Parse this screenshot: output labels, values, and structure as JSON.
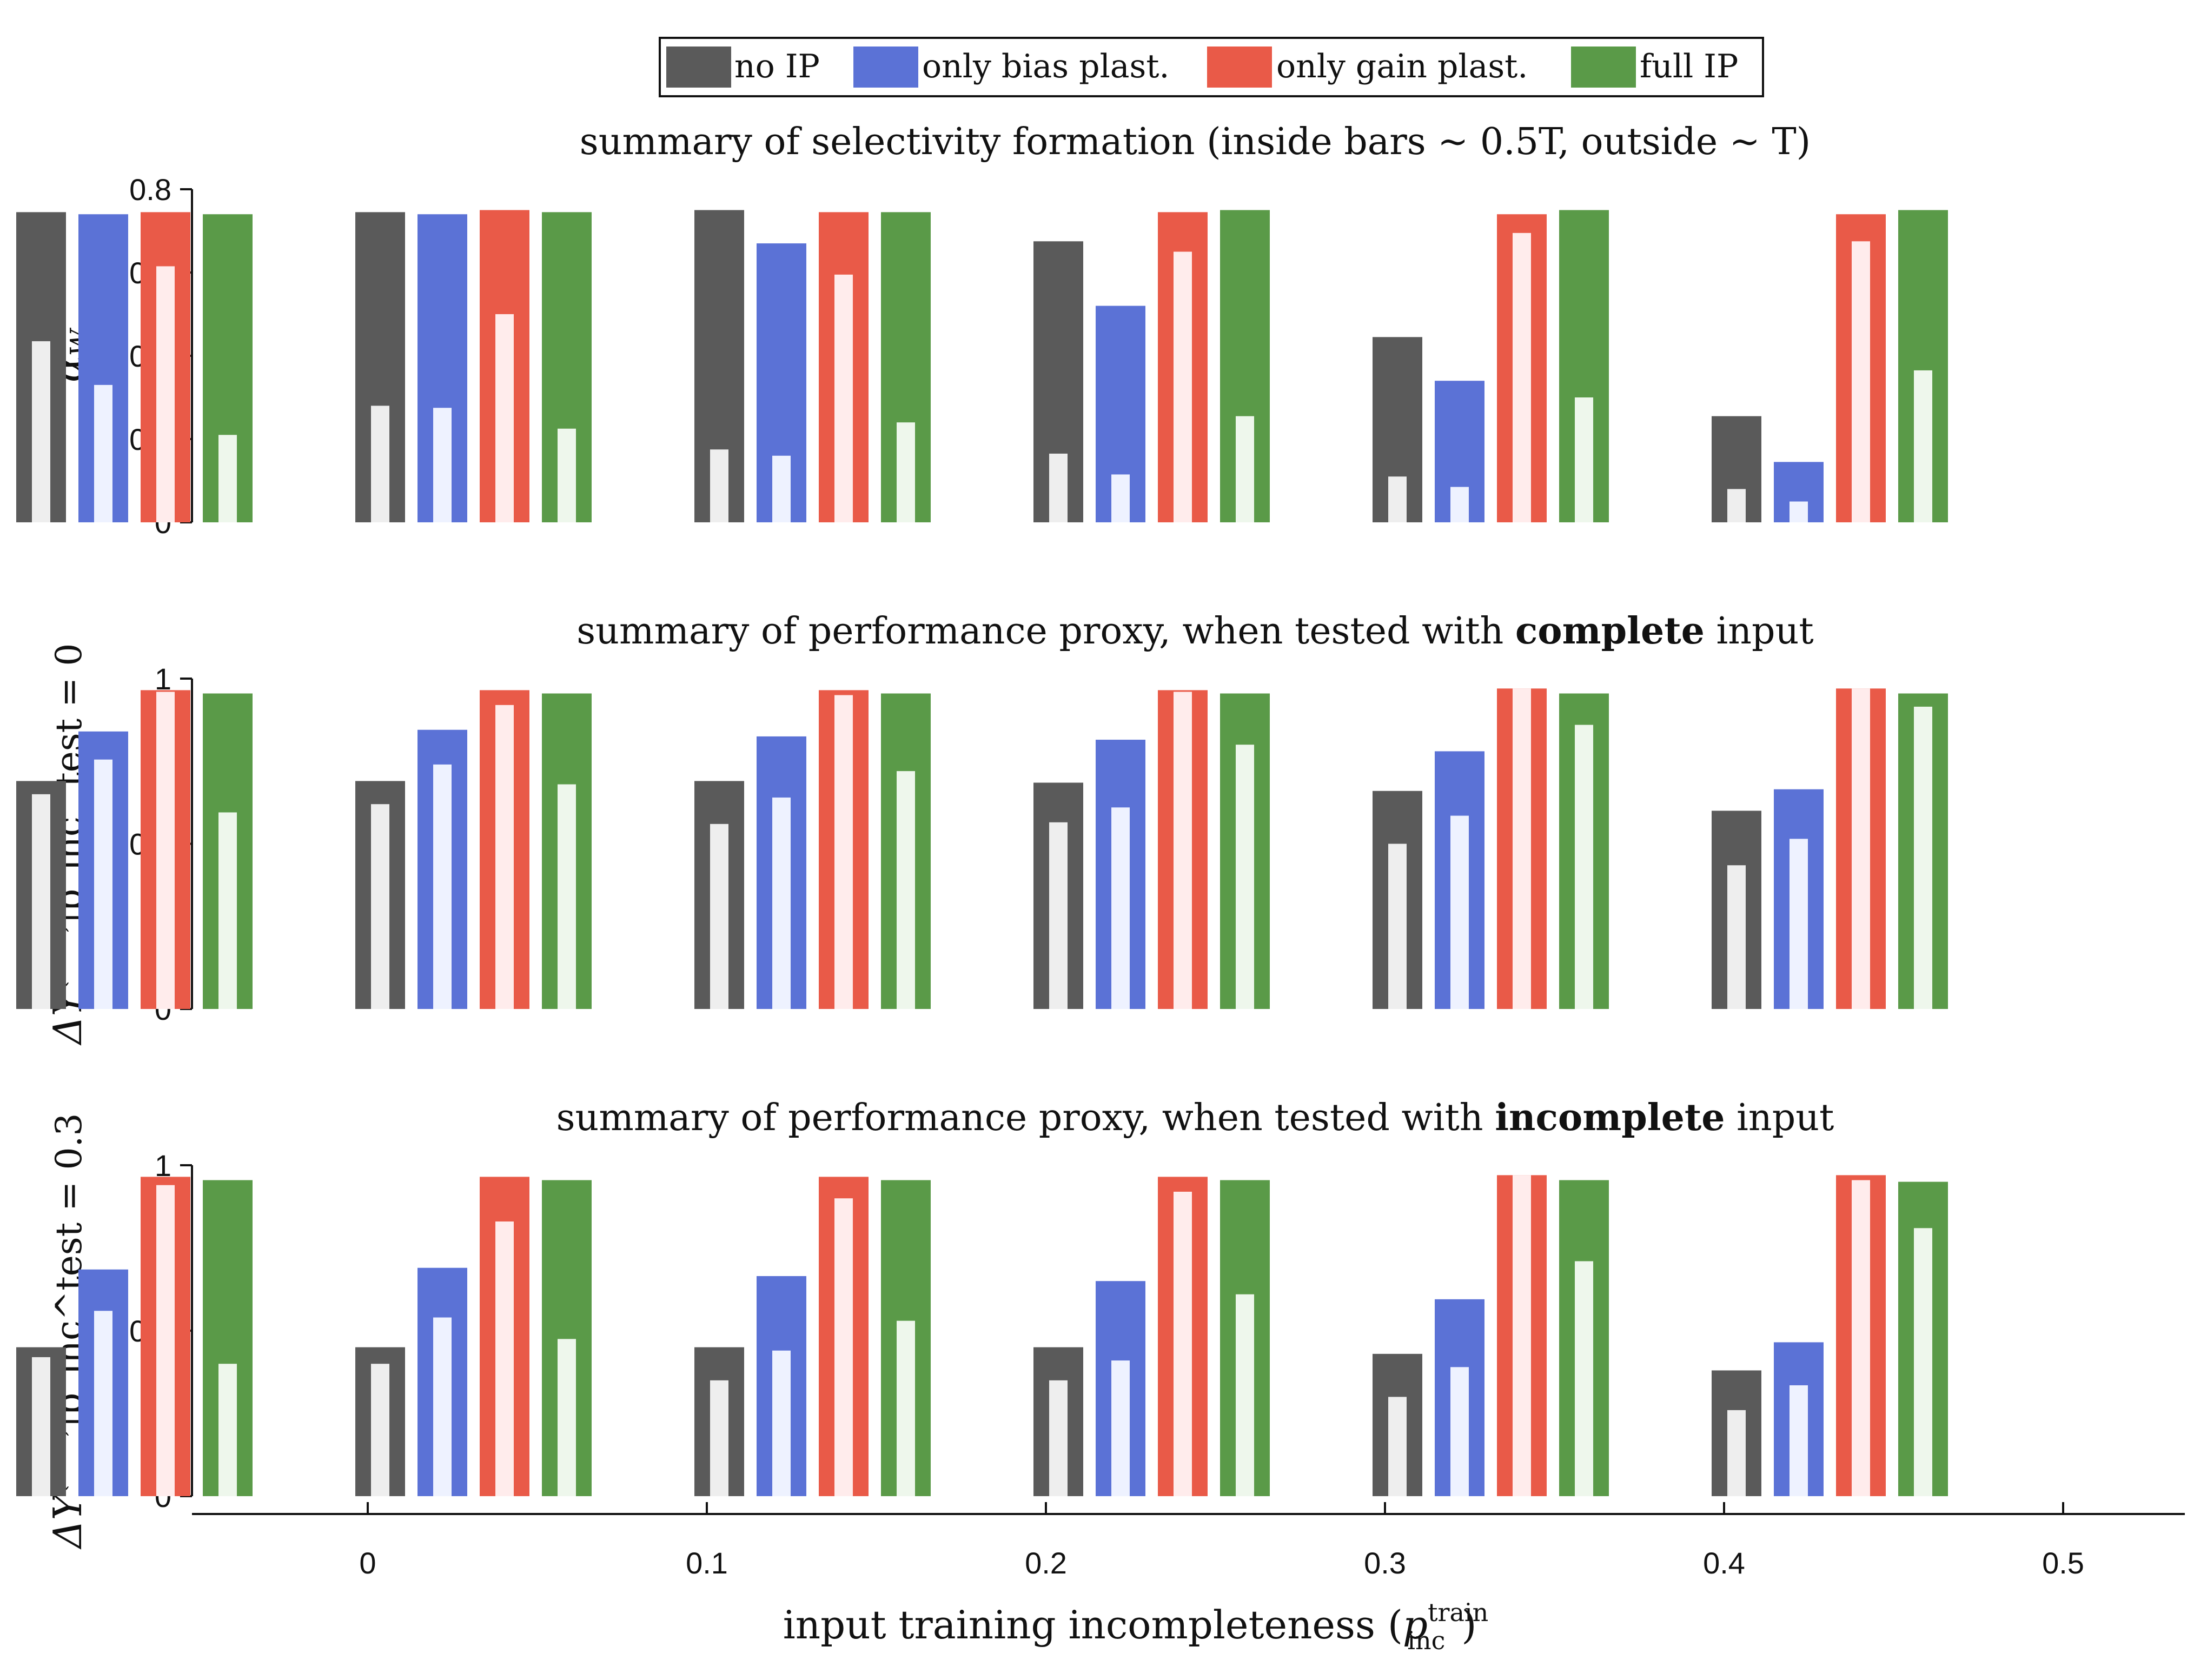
{
  "legend": {
    "placement": "top-center",
    "items": [
      {
        "label": "no IP",
        "color": "#5a5a5a"
      },
      {
        "label": "only bias plast.",
        "color": "#5b72d6"
      },
      {
        "label": "only gain plast.",
        "color": "#e95a48"
      },
      {
        "label": "full IP",
        "color": "#5a9a48"
      }
    ]
  },
  "inner_bar_colors": [
    "#eeeeee",
    "#eef2ff",
    "#ffecec",
    "#eef7ec"
  ],
  "x_axis": {
    "label_main": "input training incompleteness (",
    "label_var": "p",
    "label_sub": "inc",
    "label_sup": "train",
    "label_close": ")",
    "ticks": [
      "0",
      "0.1",
      "0.2",
      "0.3",
      "0.4",
      "0.5"
    ]
  },
  "chart_data": [
    {
      "type": "bar",
      "title_parts": [
        "summary of selectivity formation (inside bars ~ 0.5T, outside ~ T)"
      ],
      "title_bold": [
        false
      ],
      "ylabel": "ᾱ_W",
      "ylabel_main": "α",
      "ylabel_sub": "W",
      "ylabel_sup": "",
      "ylabel_rest": "",
      "ylim": [
        0,
        0.8
      ],
      "yticks": [
        0,
        0.2,
        0.4,
        0.6,
        0.8
      ],
      "ytick_labels": [
        "0",
        "0.2",
        "0.4",
        "0.6",
        "0.8"
      ],
      "categories": [
        "0",
        "0.1",
        "0.2",
        "0.3",
        "0.4",
        "0.5"
      ],
      "series": [
        {
          "name": "no IP",
          "outer": [
            0.745,
            0.745,
            0.75,
            0.675,
            0.445,
            0.255
          ],
          "inner": [
            0.435,
            0.28,
            0.175,
            0.165,
            0.11,
            0.08
          ]
        },
        {
          "name": "only bias plast.",
          "outer": [
            0.74,
            0.74,
            0.67,
            0.52,
            0.34,
            0.145
          ],
          "inner": [
            0.33,
            0.275,
            0.16,
            0.115,
            0.085,
            0.05
          ]
        },
        {
          "name": "only gain plast.",
          "outer": [
            0.745,
            0.75,
            0.745,
            0.745,
            0.74,
            0.74
          ],
          "inner": [
            0.615,
            0.5,
            0.595,
            0.65,
            0.695,
            0.675
          ]
        },
        {
          "name": "full IP",
          "outer": [
            0.74,
            0.745,
            0.745,
            0.75,
            0.75,
            0.75
          ],
          "inner": [
            0.21,
            0.225,
            0.24,
            0.255,
            0.3,
            0.365
          ]
        }
      ]
    },
    {
      "type": "bar",
      "title_parts": [
        "summary of performance proxy, when tested with ",
        "complete",
        " input"
      ],
      "title_bold": [
        false,
        true,
        false
      ],
      "ylabel": "ΔY^(test)|p_inc^test = 0",
      "ylabel_main": "ΔY",
      "ylabel_sup": "(test)",
      "ylabel_sub": "",
      "ylabel_rest": "|p_inc^test = 0",
      "ylim": [
        0,
        1
      ],
      "yticks": [
        0,
        0.5,
        1
      ],
      "ytick_labels": [
        "0",
        "0.5",
        "1"
      ],
      "categories": [
        "0",
        "0.1",
        "0.2",
        "0.3",
        "0.4",
        "0.5"
      ],
      "series": [
        {
          "name": "no IP",
          "outer": [
            0.69,
            0.69,
            0.69,
            0.685,
            0.66,
            0.6
          ],
          "inner": [
            0.65,
            0.62,
            0.56,
            0.565,
            0.5,
            0.435
          ]
        },
        {
          "name": "only bias plast.",
          "outer": [
            0.84,
            0.845,
            0.825,
            0.815,
            0.78,
            0.665
          ],
          "inner": [
            0.755,
            0.74,
            0.64,
            0.61,
            0.585,
            0.515
          ]
        },
        {
          "name": "only gain plast.",
          "outer": [
            0.965,
            0.965,
            0.965,
            0.965,
            0.97,
            0.97
          ],
          "inner": [
            0.96,
            0.92,
            0.95,
            0.96,
            0.97,
            0.97
          ]
        },
        {
          "name": "full IP",
          "outer": [
            0.955,
            0.955,
            0.955,
            0.955,
            0.955,
            0.955
          ],
          "inner": [
            0.595,
            0.68,
            0.72,
            0.8,
            0.86,
            0.915
          ]
        }
      ]
    },
    {
      "type": "bar",
      "title_parts": [
        "summary of performance proxy, when tested with ",
        "incomplete",
        " input"
      ],
      "title_bold": [
        false,
        true,
        false
      ],
      "ylabel": "ΔY^(test)|p_inc^test = 0.3",
      "ylabel_main": "ΔY",
      "ylabel_sup": "(test)",
      "ylabel_sub": "",
      "ylabel_rest": "|p_inc^test = 0.3",
      "ylim": [
        0,
        1
      ],
      "yticks": [
        0,
        0.5,
        1
      ],
      "ytick_labels": [
        "0",
        "0.5",
        "1"
      ],
      "categories": [
        "0",
        "0.1",
        "0.2",
        "0.3",
        "0.4",
        "0.5"
      ],
      "series": [
        {
          "name": "no IP",
          "outer": [
            0.45,
            0.45,
            0.45,
            0.45,
            0.43,
            0.38
          ],
          "inner": [
            0.42,
            0.4,
            0.35,
            0.35,
            0.3,
            0.26
          ]
        },
        {
          "name": "only bias plast.",
          "outer": [
            0.685,
            0.69,
            0.665,
            0.65,
            0.595,
            0.465
          ],
          "inner": [
            0.56,
            0.54,
            0.44,
            0.41,
            0.39,
            0.335
          ]
        },
        {
          "name": "only gain plast.",
          "outer": [
            0.965,
            0.965,
            0.965,
            0.965,
            0.97,
            0.97
          ],
          "inner": [
            0.94,
            0.83,
            0.9,
            0.92,
            0.97,
            0.955
          ]
        },
        {
          "name": "full IP",
          "outer": [
            0.955,
            0.955,
            0.955,
            0.955,
            0.955,
            0.95
          ],
          "inner": [
            0.4,
            0.475,
            0.53,
            0.61,
            0.71,
            0.81
          ]
        }
      ]
    }
  ]
}
